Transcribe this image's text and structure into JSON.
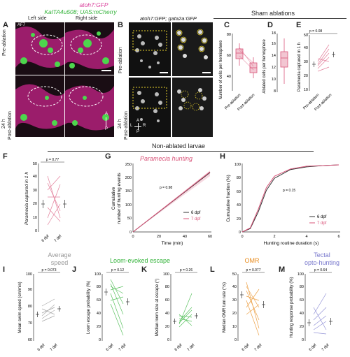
{
  "panel_A": {
    "label": "A",
    "title_line1": "atoh7:GFP",
    "title_line2": "KalTA4u508; UAS:mCherry",
    "col_left": "Left side",
    "col_right": "Right side",
    "row_top": "Pre-ablation",
    "row_bottom_1": "24 h",
    "row_bottom_2": "Post-ablation",
    "af7": "AF7",
    "axis_a": "A",
    "axis_p": "P"
  },
  "panel_B": {
    "label": "B",
    "title": "atoh7:GFP; gata2a:GFP",
    "row_top": "Pre-ablation",
    "row_bottom_1": "24 h",
    "row_bottom_2": "Post-ablation",
    "axis_a": "A",
    "axis_l": "L",
    "axis_r": "R",
    "axis_p": "P"
  },
  "header_sham": "Sham ablations",
  "header_nonablated": "Non-ablated larvae",
  "colors": {
    "pink": "#d9557a",
    "green": "#33b33a",
    "orange": "#e88a1a",
    "purple": "#7777cc",
    "gray": "#999999",
    "dark": "#222222"
  },
  "panel_C": {
    "label": "C",
    "ylabel": "Number of cells per hemisphere",
    "yticks": [
      "40",
      "60",
      "80"
    ],
    "xticks": [
      "Pre-ablation",
      "Post-ablation"
    ]
  },
  "panel_D": {
    "label": "D",
    "ylabel": "Ablated cells per hemisphere",
    "yticks": [
      "8",
      "10",
      "12",
      "14",
      "16",
      "18"
    ]
  },
  "panel_E": {
    "label": "E",
    "ylabel": "Paramecia captured in 1 h",
    "yticks": [
      "10",
      "20",
      "30",
      "40",
      "50"
    ],
    "xticks": [
      "Pre-ablation",
      "Post-ablation"
    ],
    "p": "p = 0.08"
  },
  "panel_F": {
    "label": "F",
    "ylabel": "Paramecia captured in 1 h",
    "yticks": [
      "0",
      "10",
      "20",
      "30",
      "40",
      "50"
    ],
    "xticks": [
      "6 dpf",
      "7 dpf"
    ],
    "p": "p = 0.77"
  },
  "panel_G": {
    "label": "G",
    "title": "Paramecia hunting",
    "ylabel1": "Cumulative",
    "ylabel2": "number of hunting events",
    "yticks": [
      "0",
      "50",
      "100",
      "150",
      "200",
      "250"
    ],
    "xticks": [
      "0",
      "20",
      "40",
      "60"
    ],
    "xlabel": "Time (min)",
    "p": "p = 0.98",
    "legend": [
      "6 dpf",
      "7 dpf"
    ]
  },
  "panel_H": {
    "label": "H",
    "ylabel": "Cumulative fraction (%)",
    "yticks": [
      "0",
      "20",
      "40",
      "60",
      "80",
      "100"
    ],
    "xticks": [
      "0",
      "2",
      "4",
      "6"
    ],
    "xlabel": "Hunting routine duration (s)",
    "p": "p = 0.15",
    "legend": [
      "6 dpf",
      "7 dpf"
    ]
  },
  "panel_I": {
    "label": "I",
    "title1": "Average",
    "title2": "speed",
    "ylabel": "Mean swim speed (cm/min)",
    "yticks": [
      "60",
      "70",
      "80",
      "90",
      "100"
    ],
    "xticks": [
      "6 dpf",
      "7 dpf"
    ],
    "p": "p = 0.073"
  },
  "panel_J": {
    "label": "J",
    "title": "Loom-evoked escape",
    "ylabel": "Loom escape probability (%)",
    "yticks": [
      "0",
      "20",
      "40",
      "60",
      "80",
      "100"
    ],
    "xticks": [
      "6 dpf",
      "7 dpf"
    ],
    "p": "p = 0.12"
  },
  "panel_K": {
    "label": "K",
    "ylabel": "Median loom size at escape (°)",
    "yticks": [
      "0",
      "20",
      "40",
      "60",
      "80",
      "100"
    ],
    "xticks": [
      "6 dpf",
      "7 dpf"
    ],
    "p": "p = 0.26"
  },
  "panel_L": {
    "label": "L",
    "title": "OMR",
    "ylabel": "Median OMR turn rate (°/s)",
    "yticks": [
      "0",
      "10",
      "20",
      "30",
      "40",
      "50"
    ],
    "xticks": [
      "6 dpf",
      "7 dpf"
    ],
    "p": "p = 0.077"
  },
  "panel_M": {
    "label": "M",
    "title1": "Tectal",
    "title2": "opto-hunting",
    "ylabel": "Hunting response probability (%)",
    "yticks": [
      "0",
      "20",
      "40",
      "60",
      "80",
      "100"
    ],
    "xticks": [
      "6 dpf",
      "7 dpf"
    ],
    "p": "p = 0.64"
  },
  "chart_data": [
    {
      "type": "box",
      "panel": "C",
      "categories": [
        "Pre-ablation",
        "Post-ablation"
      ],
      "medians": [
        61,
        47
      ],
      "ylim": [
        35,
        90
      ]
    },
    {
      "type": "box",
      "panel": "D",
      "categories": [
        ""
      ],
      "median": 13,
      "ylim": [
        8,
        18
      ]
    },
    {
      "type": "line",
      "panel": "E",
      "categories": [
        "Pre-ablation",
        "Post-ablation"
      ],
      "means": [
        29,
        37
      ],
      "ylim": [
        10,
        50
      ]
    },
    {
      "type": "line",
      "panel": "F",
      "categories": [
        "6 dpf",
        "7 dpf"
      ],
      "means": [
        21,
        21
      ],
      "ylim": [
        0,
        50
      ]
    },
    {
      "type": "line",
      "panel": "G",
      "series": [
        {
          "name": "6 dpf",
          "x": [
            0,
            10,
            20,
            30,
            40,
            50,
            60
          ],
          "y": [
            0,
            32,
            68,
            105,
            142,
            180,
            220
          ]
        },
        {
          "name": "7 dpf",
          "x": [
            0,
            10,
            20,
            30,
            40,
            50,
            60
          ],
          "y": [
            0,
            33,
            69,
            106,
            144,
            182,
            222
          ]
        }
      ],
      "ylim": [
        0,
        250
      ],
      "xlim": [
        0,
        60
      ]
    },
    {
      "type": "line",
      "panel": "H",
      "series": [
        {
          "name": "6 dpf",
          "x": [
            0,
            0.5,
            1,
            1.5,
            2,
            3,
            4,
            5,
            6
          ],
          "y": [
            0,
            5,
            30,
            62,
            80,
            93,
            97,
            99,
            100
          ]
        },
        {
          "name": "7 dpf",
          "x": [
            0,
            0.5,
            1,
            1.5,
            2,
            3,
            4,
            5,
            6
          ],
          "y": [
            0,
            6,
            34,
            66,
            83,
            94,
            98,
            99,
            100
          ]
        }
      ],
      "ylim": [
        0,
        100
      ],
      "xlim": [
        0,
        6
      ]
    },
    {
      "type": "line",
      "panel": "I",
      "categories": [
        "6 dpf",
        "7 dpf"
      ],
      "means": [
        74,
        76
      ],
      "ylim": [
        60,
        100
      ]
    },
    {
      "type": "line",
      "panel": "J",
      "categories": [
        "6 dpf",
        "7 dpf"
      ],
      "means": [
        70,
        60
      ],
      "ylim": [
        0,
        100
      ]
    },
    {
      "type": "line",
      "panel": "K",
      "categories": [
        "6 dpf",
        "7 dpf"
      ],
      "means": [
        30,
        34
      ],
      "ylim": [
        0,
        100
      ]
    },
    {
      "type": "line",
      "panel": "L",
      "categories": [
        "6 dpf",
        "7 dpf"
      ],
      "means": [
        35,
        28
      ],
      "ylim": [
        0,
        50
      ]
    },
    {
      "type": "line",
      "panel": "M",
      "categories": [
        "6 dpf",
        "7 dpf"
      ],
      "means": [
        28,
        30
      ],
      "ylim": [
        0,
        100
      ]
    }
  ]
}
